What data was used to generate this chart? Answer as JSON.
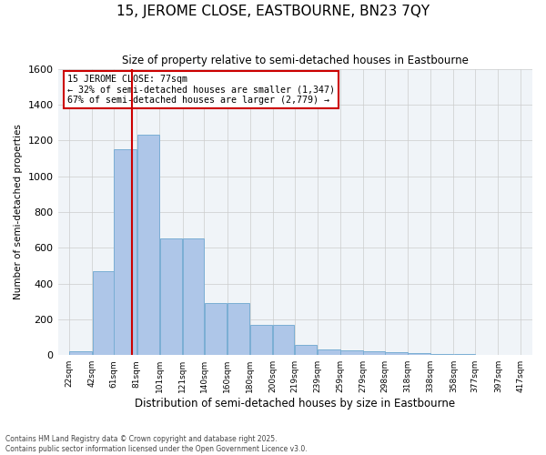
{
  "title": "15, JEROME CLOSE, EASTBOURNE, BN23 7QY",
  "subtitle": "Size of property relative to semi-detached houses in Eastbourne",
  "xlabel": "Distribution of semi-detached houses by size in Eastbourne",
  "ylabel": "Number of semi-detached properties",
  "bar_color": "#AEC6E8",
  "bar_edge_color": "#7aaed4",
  "grid_color": "#cccccc",
  "background_color": "#f0f4f8",
  "vline_x": 77,
  "vline_color": "#cc0000",
  "annotation_title": "15 JEROME CLOSE: 77sqm",
  "annotation_line1": "← 32% of semi-detached houses are smaller (1,347)",
  "annotation_line2": "67% of semi-detached houses are larger (2,779) →",
  "annotation_box_color": "#cc0000",
  "bins": [
    22,
    42,
    61,
    81,
    101,
    121,
    140,
    160,
    180,
    200,
    219,
    239,
    259,
    279,
    298,
    318,
    338,
    358,
    377,
    397,
    417
  ],
  "bin_labels": [
    "22sqm",
    "42sqm",
    "61sqm",
    "81sqm",
    "101sqm",
    "121sqm",
    "140sqm",
    "160sqm",
    "180sqm",
    "200sqm",
    "219sqm",
    "239sqm",
    "259sqm",
    "279sqm",
    "298sqm",
    "318sqm",
    "338sqm",
    "358sqm",
    "377sqm",
    "397sqm",
    "417sqm"
  ],
  "counts": [
    20,
    470,
    1150,
    1230,
    650,
    650,
    290,
    290,
    170,
    170,
    55,
    30,
    25,
    20,
    15,
    10,
    5,
    5,
    2,
    2
  ],
  "ylim": [
    0,
    1600
  ],
  "yticks": [
    0,
    200,
    400,
    600,
    800,
    1000,
    1200,
    1400,
    1600
  ],
  "footer1": "Contains HM Land Registry data © Crown copyright and database right 2025.",
  "footer2": "Contains public sector information licensed under the Open Government Licence v3.0."
}
